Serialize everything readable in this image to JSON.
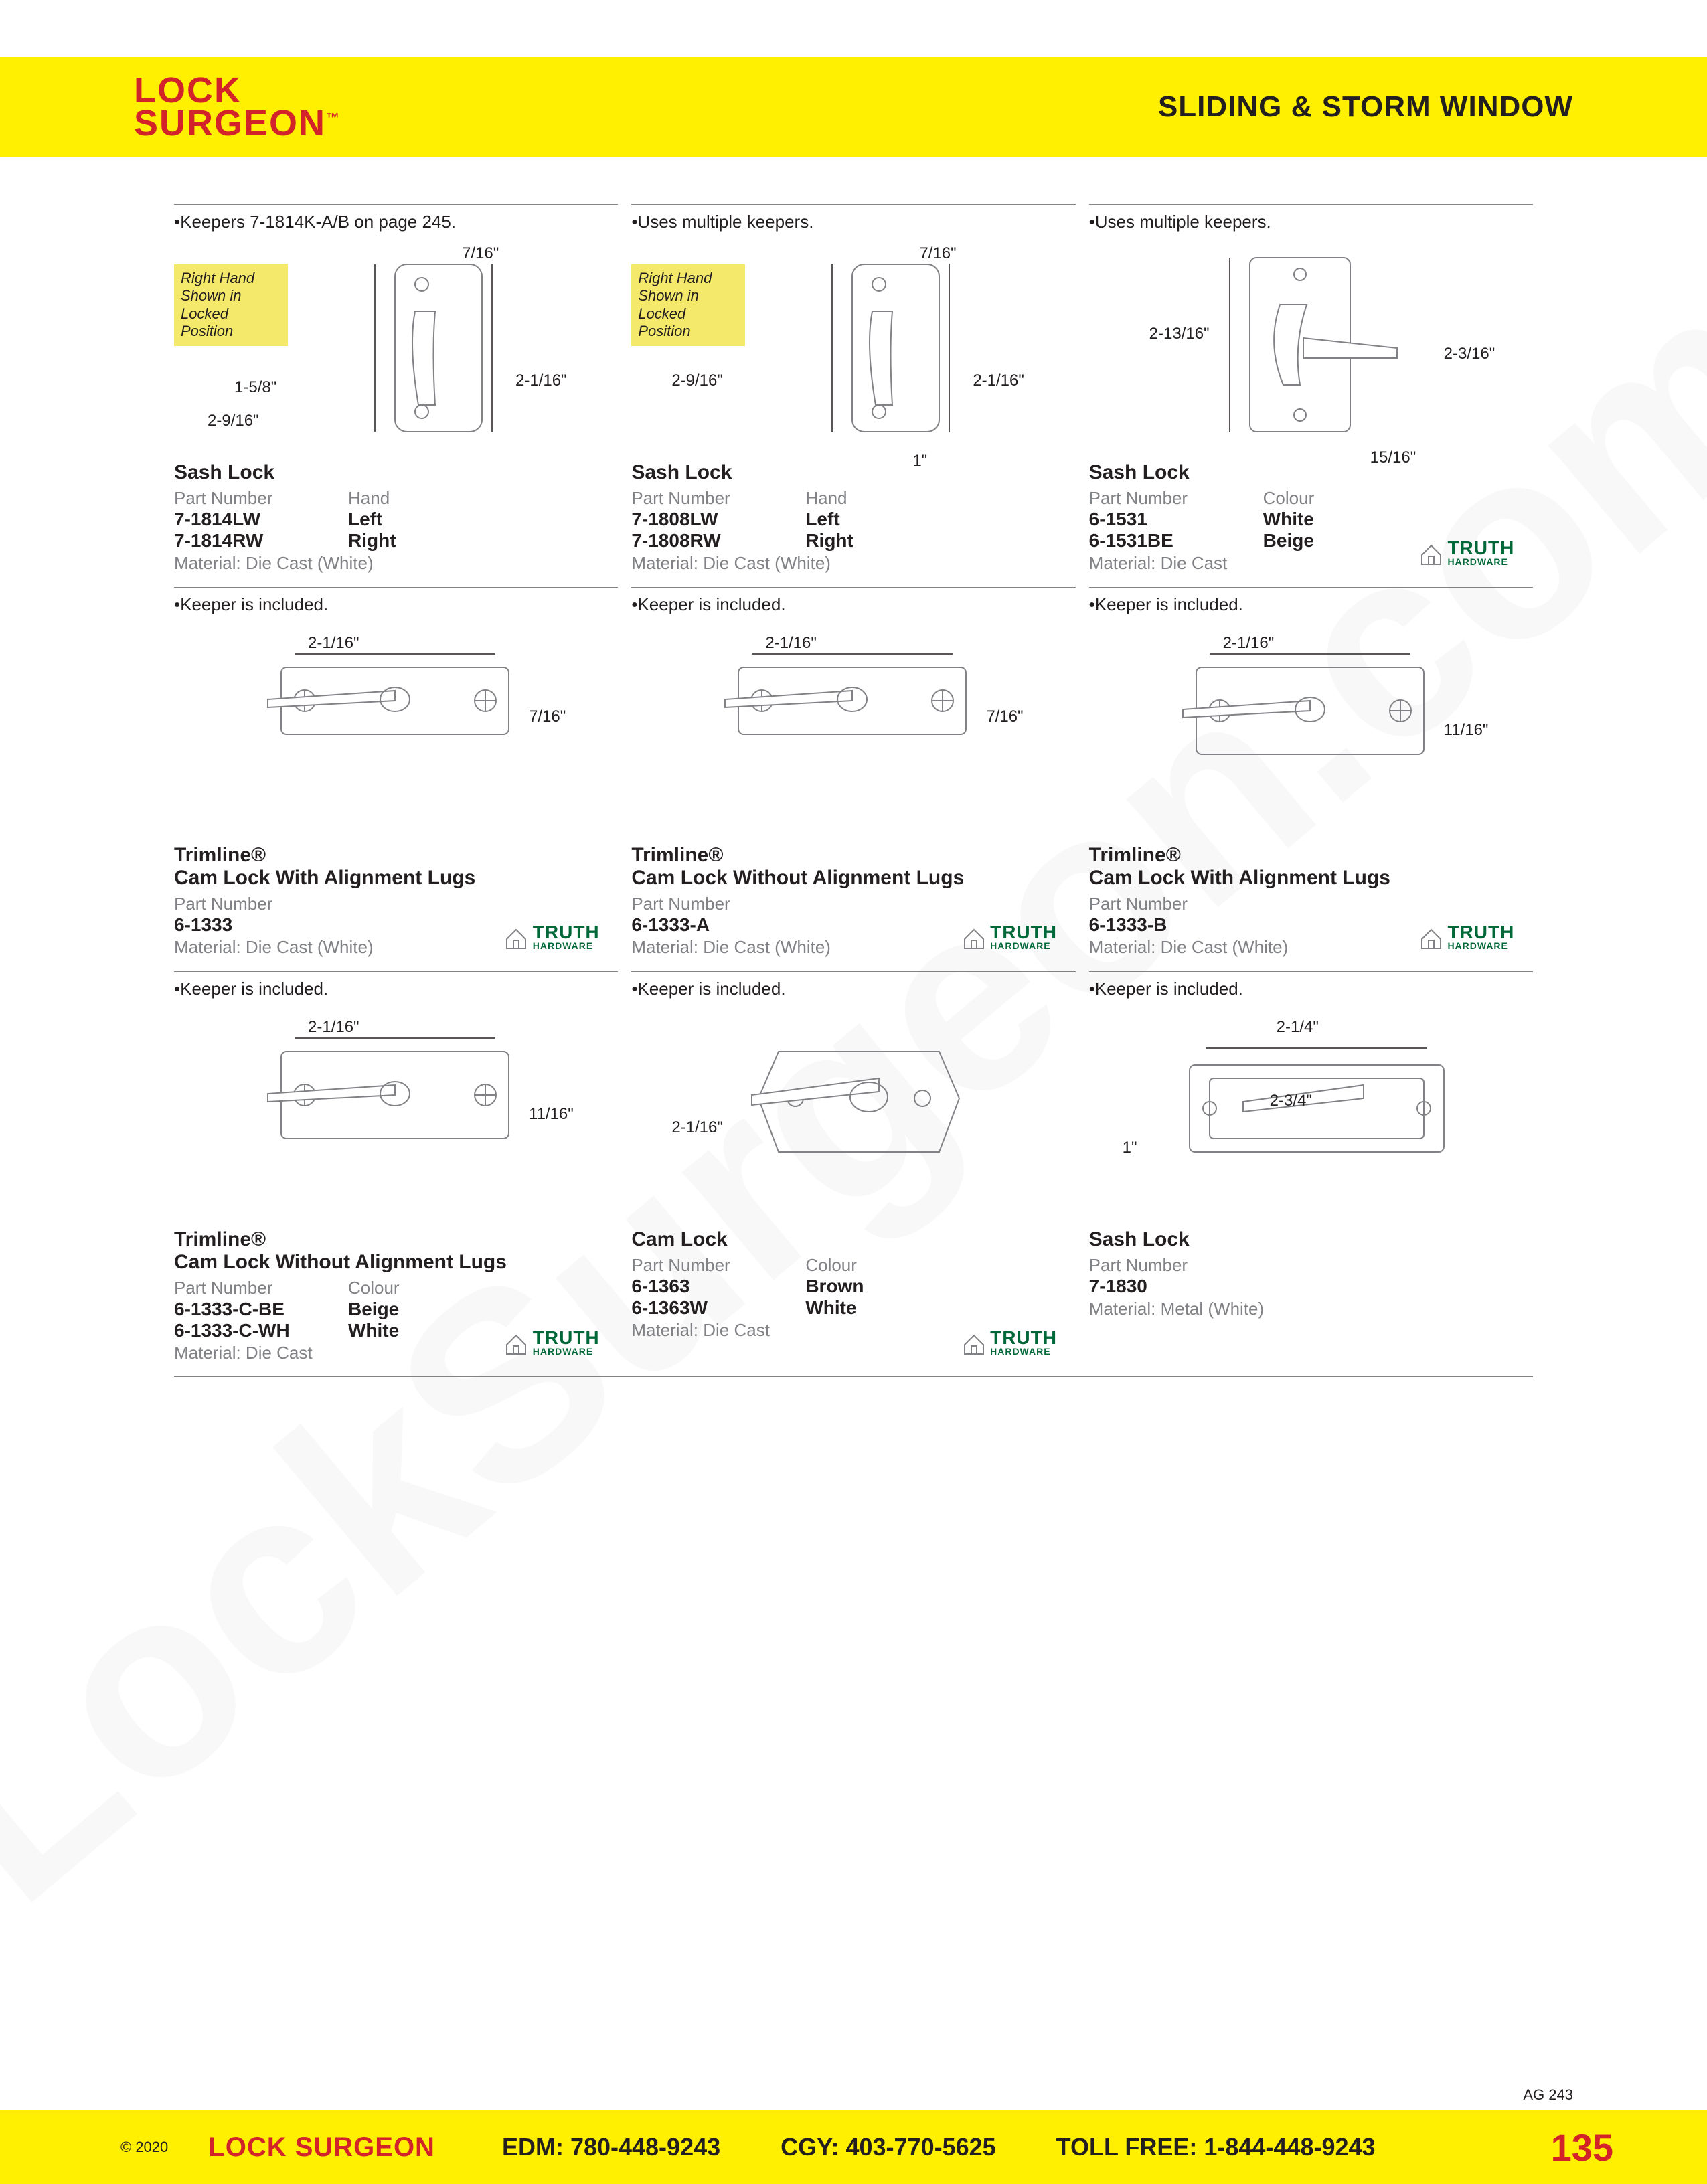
{
  "colors": {
    "yellow_bar": "#ffef00",
    "brand_red": "#d2232a",
    "text_black": "#231f20",
    "gray": "#808285",
    "truth_green": "#006838",
    "highlight_yellow": "#f4e96a",
    "background": "#ffffff"
  },
  "header": {
    "logo_line1": "LOCK",
    "logo_line2": "SURGEON",
    "tm": "™",
    "section_title": "SLIDING & STORM WINDOW"
  },
  "watermark": "LockSurgeon.com",
  "truth_brand": {
    "line1": "TRUTH",
    "line2": "HARDWARE"
  },
  "highlight_text": "Right Hand Shown in Locked Position",
  "products": [
    {
      "row": 0,
      "col": 0,
      "note": "•Keepers 7-1814K-A/B on page 245.",
      "title": "Sash Lock",
      "col1_head": "Part Number",
      "col2_head": "Hand",
      "rows": [
        [
          "7-1814LW",
          "Left"
        ],
        [
          "7-1814RW",
          "Right"
        ]
      ],
      "material": "Material: Die Cast (White)",
      "dims": [
        "7/16\"",
        "1-5/8\"",
        "2-9/16\"",
        "2-1/16\""
      ],
      "has_highlight": true,
      "has_truth": false,
      "diagram": "sash1"
    },
    {
      "row": 0,
      "col": 1,
      "note": "•Uses multiple keepers.",
      "title": "Sash Lock",
      "col1_head": "Part Number",
      "col2_head": "Hand",
      "rows": [
        [
          "7-1808LW",
          "Left"
        ],
        [
          "7-1808RW",
          "Right"
        ]
      ],
      "material": "Material: Die Cast (White)",
      "dims": [
        "7/16\"",
        "2-9/16\"",
        "2-1/16\"",
        "1\""
      ],
      "has_highlight": true,
      "has_truth": false,
      "diagram": "sash2"
    },
    {
      "row": 0,
      "col": 2,
      "note": "•Uses multiple keepers.",
      "title": "Sash Lock",
      "col1_head": "Part Number",
      "col2_head": "Colour",
      "rows": [
        [
          "6-1531",
          "White"
        ],
        [
          "6-1531BE",
          "Beige"
        ]
      ],
      "material": "Material: Die Cast",
      "dims": [
        "2-13/16\"",
        "2-3/16\"",
        "15/16\""
      ],
      "has_highlight": false,
      "has_truth": true,
      "diagram": "sash3"
    },
    {
      "row": 1,
      "col": 0,
      "note": "•Keeper is included.",
      "title": "Trimline®",
      "subtitle": "Cam Lock With Alignment Lugs",
      "col1_head": "Part Number",
      "rows": [
        [
          "6-1333"
        ]
      ],
      "material": "Material: Die Cast (White)",
      "dims": [
        "2-1/16\"",
        "7/16\""
      ],
      "has_truth": true,
      "diagram": "cam1"
    },
    {
      "row": 1,
      "col": 1,
      "note": "•Keeper is included.",
      "title": "Trimline®",
      "subtitle": "Cam Lock Without Alignment Lugs",
      "col1_head": "Part Number",
      "rows": [
        [
          "6-1333-A"
        ]
      ],
      "material": "Material: Die Cast (White)",
      "dims": [
        "2-1/16\"",
        "7/16\""
      ],
      "has_truth": true,
      "diagram": "cam1"
    },
    {
      "row": 1,
      "col": 2,
      "note": "•Keeper is included.",
      "title": "Trimline®",
      "subtitle": "Cam Lock With Alignment Lugs",
      "col1_head": "Part Number",
      "rows": [
        [
          "6-1333-B"
        ]
      ],
      "material": "Material: Die Cast (White)",
      "dims": [
        "2-1/16\"",
        "11/16\""
      ],
      "has_truth": true,
      "diagram": "cam2"
    },
    {
      "row": 2,
      "col": 0,
      "note": "•Keeper is included.",
      "title": "Trimline®",
      "subtitle": "Cam Lock Without Alignment Lugs",
      "col1_head": "Part Number",
      "col2_head": "Colour",
      "rows": [
        [
          "6-1333-C-BE",
          "Beige"
        ],
        [
          "6-1333-C-WH",
          "White"
        ]
      ],
      "material": "Material: Die Cast",
      "dims": [
        "2-1/16\"",
        "11/16\""
      ],
      "has_truth": true,
      "diagram": "cam2"
    },
    {
      "row": 2,
      "col": 1,
      "note": "•Keeper is included.",
      "title": "Cam Lock",
      "col1_head": "Part Number",
      "col2_head": "Colour",
      "rows": [
        [
          "6-1363",
          "Brown"
        ],
        [
          "6-1363W",
          "White"
        ]
      ],
      "material": "Material: Die Cast",
      "dims": [
        "2-1/16\""
      ],
      "has_truth": true,
      "diagram": "cam3"
    },
    {
      "row": 2,
      "col": 2,
      "note": "•Keeper is included.",
      "title": "Sash Lock",
      "col1_head": "Part Number",
      "rows": [
        [
          "7-1830"
        ]
      ],
      "material": "Material: Metal (White)",
      "dims": [
        "2-1/4\"",
        "2-3/4\"",
        "1\""
      ],
      "has_truth": false,
      "diagram": "sash4"
    }
  ],
  "footer": {
    "copyright": "© 2020",
    "brand": "LOCK SURGEON",
    "edm": "EDM: 780-448-9243",
    "cgy": "CGY: 403-770-5625",
    "tollfree": "TOLL FREE: 1-844-448-9243",
    "page": "135",
    "ag_code": "AG 243"
  }
}
